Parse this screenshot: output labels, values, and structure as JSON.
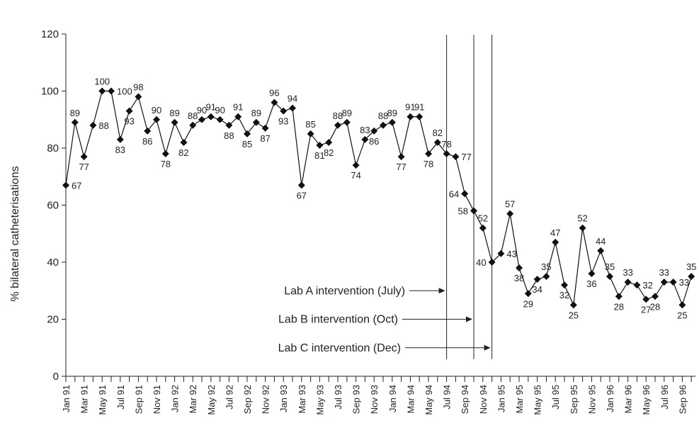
{
  "chart_data": {
    "type": "line",
    "title": "",
    "xlabel": "",
    "ylabel": "% bilateral catheterisations",
    "ylim": [
      0,
      120
    ],
    "yticks": [
      0,
      20,
      40,
      60,
      80,
      100,
      120
    ],
    "grid": false,
    "x": [
      "Jan 91",
      "Feb 91",
      "Mar 91",
      "Apr 91",
      "May 91",
      "Jun 91",
      "Jul 91",
      "Aug 91",
      "Sep 91",
      "Oct 91",
      "Nov 91",
      "Dec 91",
      "Jan 92",
      "Feb 92",
      "Mar 92",
      "Apr 92",
      "May 92",
      "Jun 92",
      "Jul 92",
      "Aug 92",
      "Sep 92",
      "Oct 92",
      "Nov 92",
      "Dec 92",
      "Jan 93",
      "Feb 93",
      "Mar 93",
      "Apr 93",
      "May 93",
      "Jun 93",
      "Jul 93",
      "Aug 93",
      "Sep 93",
      "Oct 93",
      "Nov 93",
      "Dec 93",
      "Jan 94",
      "Feb 94",
      "Mar 94",
      "Apr 94",
      "May 94",
      "Jun 94",
      "Jul 94",
      "Aug 94",
      "Sep 94",
      "Oct 94",
      "Nov 94",
      "Dec 94",
      "Jan 95",
      "Feb 95",
      "Mar 95",
      "Apr 95",
      "May 95",
      "Jun 95",
      "Jul 95",
      "Aug 95",
      "Sep 95",
      "Oct 95",
      "Nov 95",
      "Dec 95",
      "Jan 96",
      "Feb 96",
      "Mar 96",
      "Apr 96",
      "May 96",
      "Jun 96",
      "Jul 96",
      "Aug 96",
      "Sep 96",
      "Oct 96"
    ],
    "x_tick_labels": [
      "Jan 91",
      "Mar 91",
      "May 91",
      "Jul 91",
      "Sep 91",
      "Nov 91",
      "Jan 92",
      "Mar 92",
      "May 92",
      "Jul 92",
      "Sep 92",
      "Nov 92",
      "Jan 93",
      "Mar 93",
      "May 93",
      "Jul 93",
      "Sep 93",
      "Nov 93",
      "Jan 94",
      "Mar 94",
      "May 94",
      "Jul 94",
      "Sep 94",
      "Nov 94",
      "Jan 95",
      "Mar 95",
      "May 95",
      "Jul 95",
      "Sep 95",
      "Nov 95",
      "Jan 96",
      "Mar 96",
      "May 96",
      "Jul 96",
      "Sep 96"
    ],
    "series": [
      {
        "values": [
          67,
          89,
          77,
          88,
          100,
          100,
          83,
          93,
          98,
          86,
          90,
          78,
          89,
          82,
          88,
          90,
          91,
          90,
          88,
          91,
          85,
          89,
          87,
          96,
          93,
          94,
          67,
          85,
          81,
          82,
          88,
          89,
          74,
          83,
          86,
          88,
          89,
          77,
          91,
          91,
          78,
          82,
          78,
          77,
          64,
          58,
          52,
          40,
          43,
          57,
          38,
          29,
          34,
          35,
          47,
          32,
          25,
          52,
          36,
          44,
          35,
          28,
          33,
          32,
          27,
          28,
          33,
          33,
          25,
          35
        ]
      }
    ],
    "data_labels": [
      "67",
      "89",
      "77",
      "88",
      "100",
      "100",
      "83",
      "93",
      "98",
      "86",
      "90",
      "78",
      "89",
      "82",
      "88",
      "90",
      "91",
      "90",
      "88",
      "91",
      "85",
      "89",
      "87",
      "96",
      "93",
      "94",
      "67",
      "85",
      "81",
      "82",
      "88",
      "89",
      "74",
      "83",
      "86",
      "88",
      "89",
      "77",
      "91",
      "91",
      "78",
      "82",
      "78",
      "77",
      "64",
      "58",
      "52",
      "40",
      "43",
      "57",
      "38",
      "29",
      "34",
      "35",
      "47",
      "32",
      "25",
      "52",
      "36",
      "44",
      "35",
      "28",
      "33",
      "32",
      "27",
      "28",
      "33",
      "33",
      "25",
      "35"
    ],
    "label_sides": [
      "r",
      "t",
      "b",
      "r",
      "t",
      "r",
      "b",
      "b",
      "t",
      "b",
      "t",
      "b",
      "t",
      "b",
      "t",
      "t",
      "t",
      "t",
      "b",
      "t",
      "b",
      "t",
      "b",
      "t",
      "b",
      "t",
      "b",
      "t",
      "b",
      "b",
      "t",
      "t",
      "b",
      "t",
      "b",
      "t",
      "t",
      "b",
      "t",
      "t",
      "b",
      "t",
      "t",
      "r",
      "l",
      "l",
      "t",
      "l",
      "r",
      "t",
      "b",
      "b",
      "b",
      "t",
      "t",
      "b",
      "b",
      "t",
      "b",
      "t",
      "t",
      "b",
      "t",
      "r",
      "b",
      "b",
      "t",
      "r",
      "b",
      "t"
    ],
    "interventions": [
      {
        "label": "Lab A intervention (July)",
        "x": "Jul 94"
      },
      {
        "label": "Lab B intervention (Oct)",
        "x": "Oct 94"
      },
      {
        "label": "Lab C intervention (Dec)",
        "x": "Dec 94"
      }
    ]
  }
}
